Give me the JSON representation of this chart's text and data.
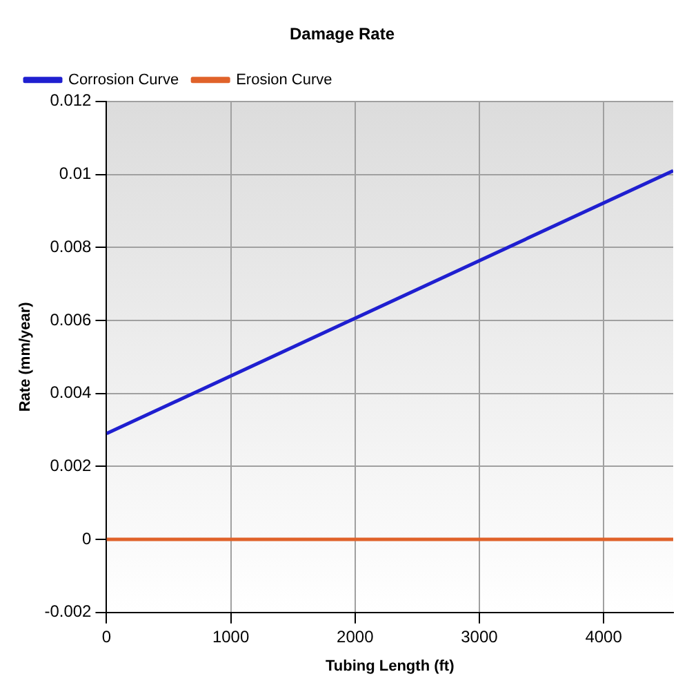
{
  "chart_data": {
    "type": "line",
    "title": "Damage Rate",
    "xlabel": "Tubing Length (ft)",
    "ylabel": "Rate (mm/year)",
    "x": [
      0,
      4560
    ],
    "series": [
      {
        "name": "Corrosion Curve",
        "color": "#1f1fd0",
        "values": [
          0.0029,
          0.0101
        ]
      },
      {
        "name": "Erosion Curve",
        "color": "#e0622a",
        "values": [
          0,
          0
        ]
      }
    ],
    "xlim": [
      0,
      4560
    ],
    "xticks": [
      0,
      1000,
      2000,
      3000,
      4000
    ],
    "ylim": [
      -0.002,
      0.012
    ],
    "yticks": [
      -0.002,
      0,
      0.002,
      0.004,
      0.006,
      0.008,
      0.01,
      0.012
    ],
    "grid": true,
    "legend": "top left",
    "marker": "none",
    "line_style": "solid"
  }
}
